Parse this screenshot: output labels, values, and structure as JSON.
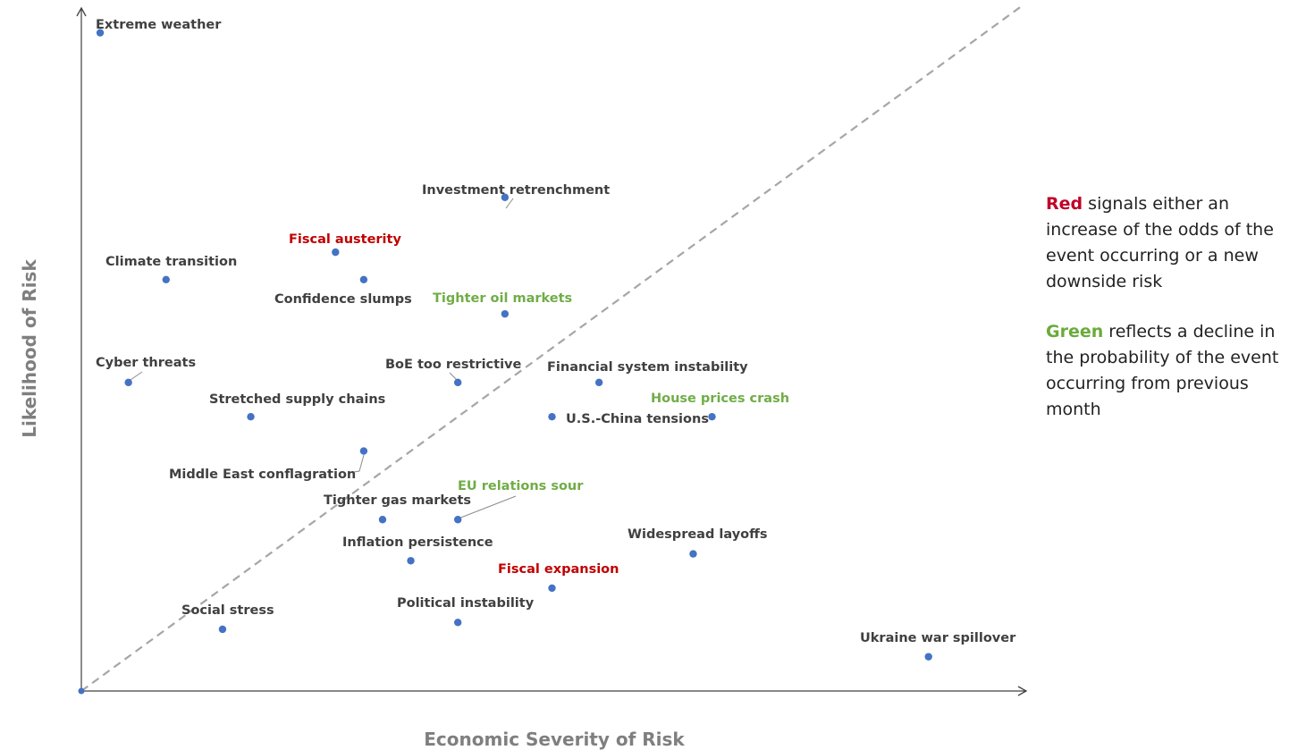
{
  "chart_data": {
    "type": "scatter",
    "xlabel": "Economic Severity of Risk",
    "ylabel": "Likelihood of Risk",
    "xlim": [
      0,
      100
    ],
    "ylim": [
      0,
      100
    ],
    "diagonal": "dashed y = x reference line",
    "grid": false,
    "colors": {
      "point": "#4472c4",
      "neutral": "#404040",
      "red": "#c00000",
      "green": "#70ad47",
      "diagonal": "#a6a6a6",
      "axis": "#404040"
    },
    "points": [
      {
        "name": "Extreme weather",
        "x": 2,
        "y": 96,
        "status": "neutral"
      },
      {
        "name": "Investment retrenchment",
        "x": 45,
        "y": 72,
        "status": "neutral"
      },
      {
        "name": "Fiscal austerity",
        "x": 27,
        "y": 64,
        "status": "red"
      },
      {
        "name": "Climate transition",
        "x": 9,
        "y": 60,
        "status": "neutral"
      },
      {
        "name": "Confidence slumps",
        "x": 30,
        "y": 60,
        "status": "neutral"
      },
      {
        "name": "Tighter oil markets",
        "x": 45,
        "y": 55,
        "status": "green"
      },
      {
        "name": "Cyber threats",
        "x": 5,
        "y": 45,
        "status": "neutral"
      },
      {
        "name": "BoE too restrictive",
        "x": 40,
        "y": 45,
        "status": "neutral"
      },
      {
        "name": "Financial system instability",
        "x": 55,
        "y": 45,
        "status": "neutral"
      },
      {
        "name": "House prices crash",
        "x": 67,
        "y": 40,
        "status": "green"
      },
      {
        "name": "U.S.-China tensions",
        "x": 50,
        "y": 40,
        "status": "neutral"
      },
      {
        "name": "Stretched supply chains",
        "x": 18,
        "y": 40,
        "status": "neutral"
      },
      {
        "name": "Middle East conflagration",
        "x": 30,
        "y": 35,
        "status": "neutral"
      },
      {
        "name": "Tighter gas markets",
        "x": 32,
        "y": 25,
        "status": "neutral"
      },
      {
        "name": "EU relations sour",
        "x": 40,
        "y": 25,
        "status": "green"
      },
      {
        "name": "Inflation persistence",
        "x": 35,
        "y": 19,
        "status": "neutral"
      },
      {
        "name": "Widespread layoffs",
        "x": 65,
        "y": 20,
        "status": "neutral"
      },
      {
        "name": "Fiscal expansion",
        "x": 50,
        "y": 15,
        "status": "red"
      },
      {
        "name": "Social stress",
        "x": 15,
        "y": 9,
        "status": "neutral"
      },
      {
        "name": "Political instability",
        "x": 40,
        "y": 10,
        "status": "neutral"
      },
      {
        "name": "Ukraine war spillover",
        "x": 90,
        "y": 5,
        "status": "neutral"
      }
    ]
  },
  "legend": {
    "red_word": "Red",
    "red_text": " signals either an increase of the odds of the event occurring or a new downside risk",
    "green_word": "Green",
    "green_text": " reflects a decline in the probability of the event occurring from previous month"
  }
}
